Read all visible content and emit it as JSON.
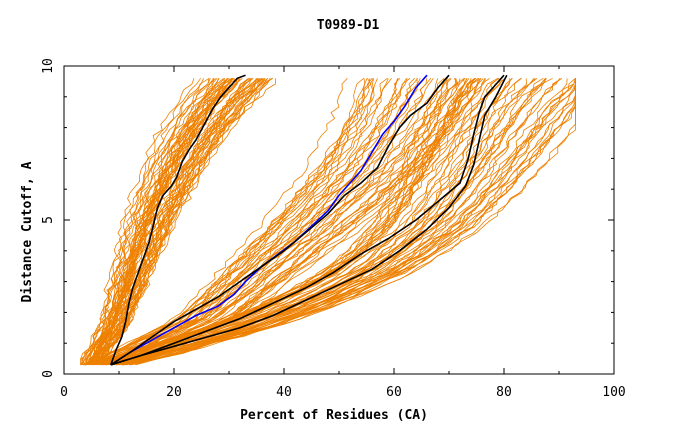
{
  "chart_data": {
    "type": "line",
    "title": "T0989-D1",
    "xlabel": "Percent of Residues (CA)",
    "ylabel": "Distance Cutoff, A",
    "xlim": [
      0,
      100
    ],
    "ylim": [
      0,
      10
    ],
    "x_ticks": [
      "0",
      "20",
      "40",
      "60",
      "80",
      "100"
    ],
    "y_ticks": [
      "0",
      "5",
      "10"
    ],
    "grid": false,
    "colors": {
      "background_curves": "#ee8000",
      "highlight_black": "#000000",
      "highlight_blue": "#0000ff"
    },
    "background_band_centers": [
      {
        "name": "left-band",
        "x": [
          5,
          7,
          9,
          10,
          12,
          14,
          16,
          18,
          20,
          22,
          24,
          26,
          28,
          30,
          32
        ],
        "y": [
          0.3,
          1.0,
          1.5,
          2.0,
          3.0,
          4.0,
          5.0,
          5.8,
          6.5,
          7.2,
          7.8,
          8.3,
          8.8,
          9.2,
          9.6
        ]
      },
      {
        "name": "middle-band",
        "x": [
          8,
          14,
          20,
          26,
          30,
          35,
          40,
          45,
          50,
          55,
          60,
          64,
          66
        ],
        "y": [
          0.3,
          0.8,
          1.3,
          1.8,
          2.4,
          3.2,
          4.0,
          4.8,
          5.7,
          6.6,
          7.7,
          8.8,
          9.6
        ]
      },
      {
        "name": "right-band",
        "x": [
          8,
          15,
          22,
          30,
          38,
          46,
          54,
          60,
          66,
          70,
          74,
          78,
          82,
          86
        ],
        "y": [
          0.3,
          0.6,
          1.0,
          1.4,
          1.9,
          2.5,
          3.2,
          3.9,
          4.8,
          5.6,
          6.6,
          7.7,
          8.8,
          9.6
        ]
      }
    ],
    "series": [
      {
        "color": "#000000",
        "x": [
          8.5,
          9.5,
          10.5,
          11.2,
          11.8,
          12.5,
          13.5,
          14.5,
          15.5,
          16.2,
          17.0,
          18.0,
          19.5,
          20.5,
          21.5,
          22.8,
          24.0,
          25.5,
          27.0,
          28.5,
          30.0,
          31.5,
          33.0
        ],
        "y": [
          0.3,
          0.8,
          1.2,
          1.7,
          2.3,
          2.8,
          3.3,
          3.8,
          4.3,
          4.8,
          5.4,
          5.8,
          6.1,
          6.4,
          6.9,
          7.3,
          7.6,
          8.1,
          8.6,
          9.0,
          9.3,
          9.6,
          9.7
        ]
      },
      {
        "color": "#0000ff",
        "x": [
          8.5,
          12,
          16,
          20,
          24,
          28,
          31,
          33,
          36,
          39,
          42,
          45,
          48,
          50,
          52,
          54,
          56,
          58,
          60,
          62,
          64,
          66
        ],
        "y": [
          0.3,
          0.7,
          1.1,
          1.5,
          1.9,
          2.2,
          2.6,
          3.0,
          3.5,
          3.9,
          4.3,
          4.8,
          5.3,
          5.8,
          6.2,
          6.6,
          7.2,
          7.8,
          8.2,
          8.7,
          9.3,
          9.7
        ]
      },
      {
        "color": "#000000",
        "x": [
          8.5,
          12,
          16,
          20,
          24,
          28,
          32,
          36,
          40,
          44,
          48,
          51,
          54,
          57,
          59,
          61,
          63,
          66,
          68,
          70
        ],
        "y": [
          0.3,
          0.7,
          1.2,
          1.7,
          2.1,
          2.5,
          3.0,
          3.5,
          4.0,
          4.6,
          5.2,
          5.8,
          6.2,
          6.7,
          7.4,
          8.0,
          8.4,
          8.8,
          9.3,
          9.7
        ]
      },
      {
        "color": "#000000",
        "x": [
          8.5,
          14,
          20,
          26,
          32,
          38,
          44,
          49,
          54,
          59,
          64,
          68,
          72,
          73.5,
          74.5,
          75.5,
          76.5,
          78.5,
          80
        ],
        "y": [
          0.3,
          0.6,
          1.0,
          1.4,
          1.8,
          2.3,
          2.8,
          3.3,
          3.9,
          4.4,
          5.0,
          5.6,
          6.2,
          7.0,
          7.8,
          8.5,
          9.0,
          9.4,
          9.7
        ]
      },
      {
        "color": "#000000",
        "x": [
          8.5,
          14,
          20,
          26,
          32,
          38,
          44,
          50,
          56,
          61,
          66,
          70,
          73,
          74.5,
          75.5,
          76.5,
          78.5,
          80.5
        ],
        "y": [
          0.3,
          0.6,
          0.9,
          1.2,
          1.5,
          1.9,
          2.4,
          2.9,
          3.4,
          4.0,
          4.7,
          5.4,
          6.1,
          6.8,
          7.6,
          8.4,
          9.0,
          9.7
        ]
      }
    ]
  }
}
